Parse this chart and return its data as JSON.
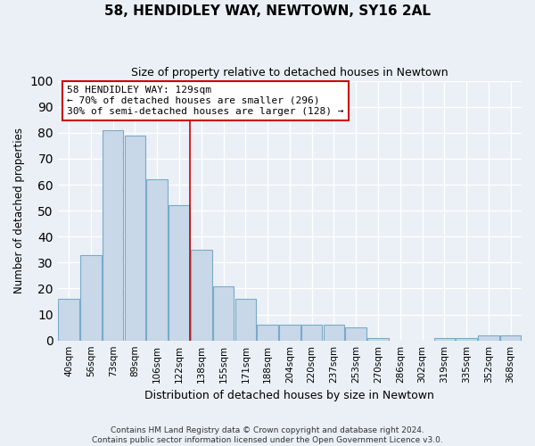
{
  "title": "58, HENDIDLEY WAY, NEWTOWN, SY16 2AL",
  "subtitle": "Size of property relative to detached houses in Newtown",
  "xlabel": "Distribution of detached houses by size in Newtown",
  "ylabel": "Number of detached properties",
  "bar_color": "#c8d8e8",
  "bar_edge_color": "#7aaac8",
  "background_color": "#eaf0f6",
  "grid_color": "#ffffff",
  "categories": [
    "40sqm",
    "56sqm",
    "73sqm",
    "89sqm",
    "106sqm",
    "122sqm",
    "138sqm",
    "155sqm",
    "171sqm",
    "188sqm",
    "204sqm",
    "220sqm",
    "237sqm",
    "253sqm",
    "270sqm",
    "286sqm",
    "302sqm",
    "319sqm",
    "335sqm",
    "352sqm",
    "368sqm"
  ],
  "values": [
    16,
    33,
    81,
    79,
    62,
    52,
    35,
    21,
    16,
    6,
    6,
    6,
    6,
    5,
    1,
    0,
    0,
    1,
    1,
    2,
    2
  ],
  "ylim": [
    0,
    100
  ],
  "yticks": [
    0,
    10,
    20,
    30,
    40,
    50,
    60,
    70,
    80,
    90,
    100
  ],
  "property_line_x": 5.5,
  "annotation_title": "58 HENDIDLEY WAY: 129sqm",
  "annotation_line1": "← 70% of detached houses are smaller (296)",
  "annotation_line2": "30% of semi-detached houses are larger (128) →",
  "annotation_box_color": "#ffffff",
  "annotation_box_edge_color": "#cc0000",
  "footer_line1": "Contains HM Land Registry data © Crown copyright and database right 2024.",
  "footer_line2": "Contains public sector information licensed under the Open Government Licence v3.0.",
  "title_fontsize": 11,
  "subtitle_fontsize": 9,
  "ylabel_fontsize": 8.5,
  "xlabel_fontsize": 9
}
